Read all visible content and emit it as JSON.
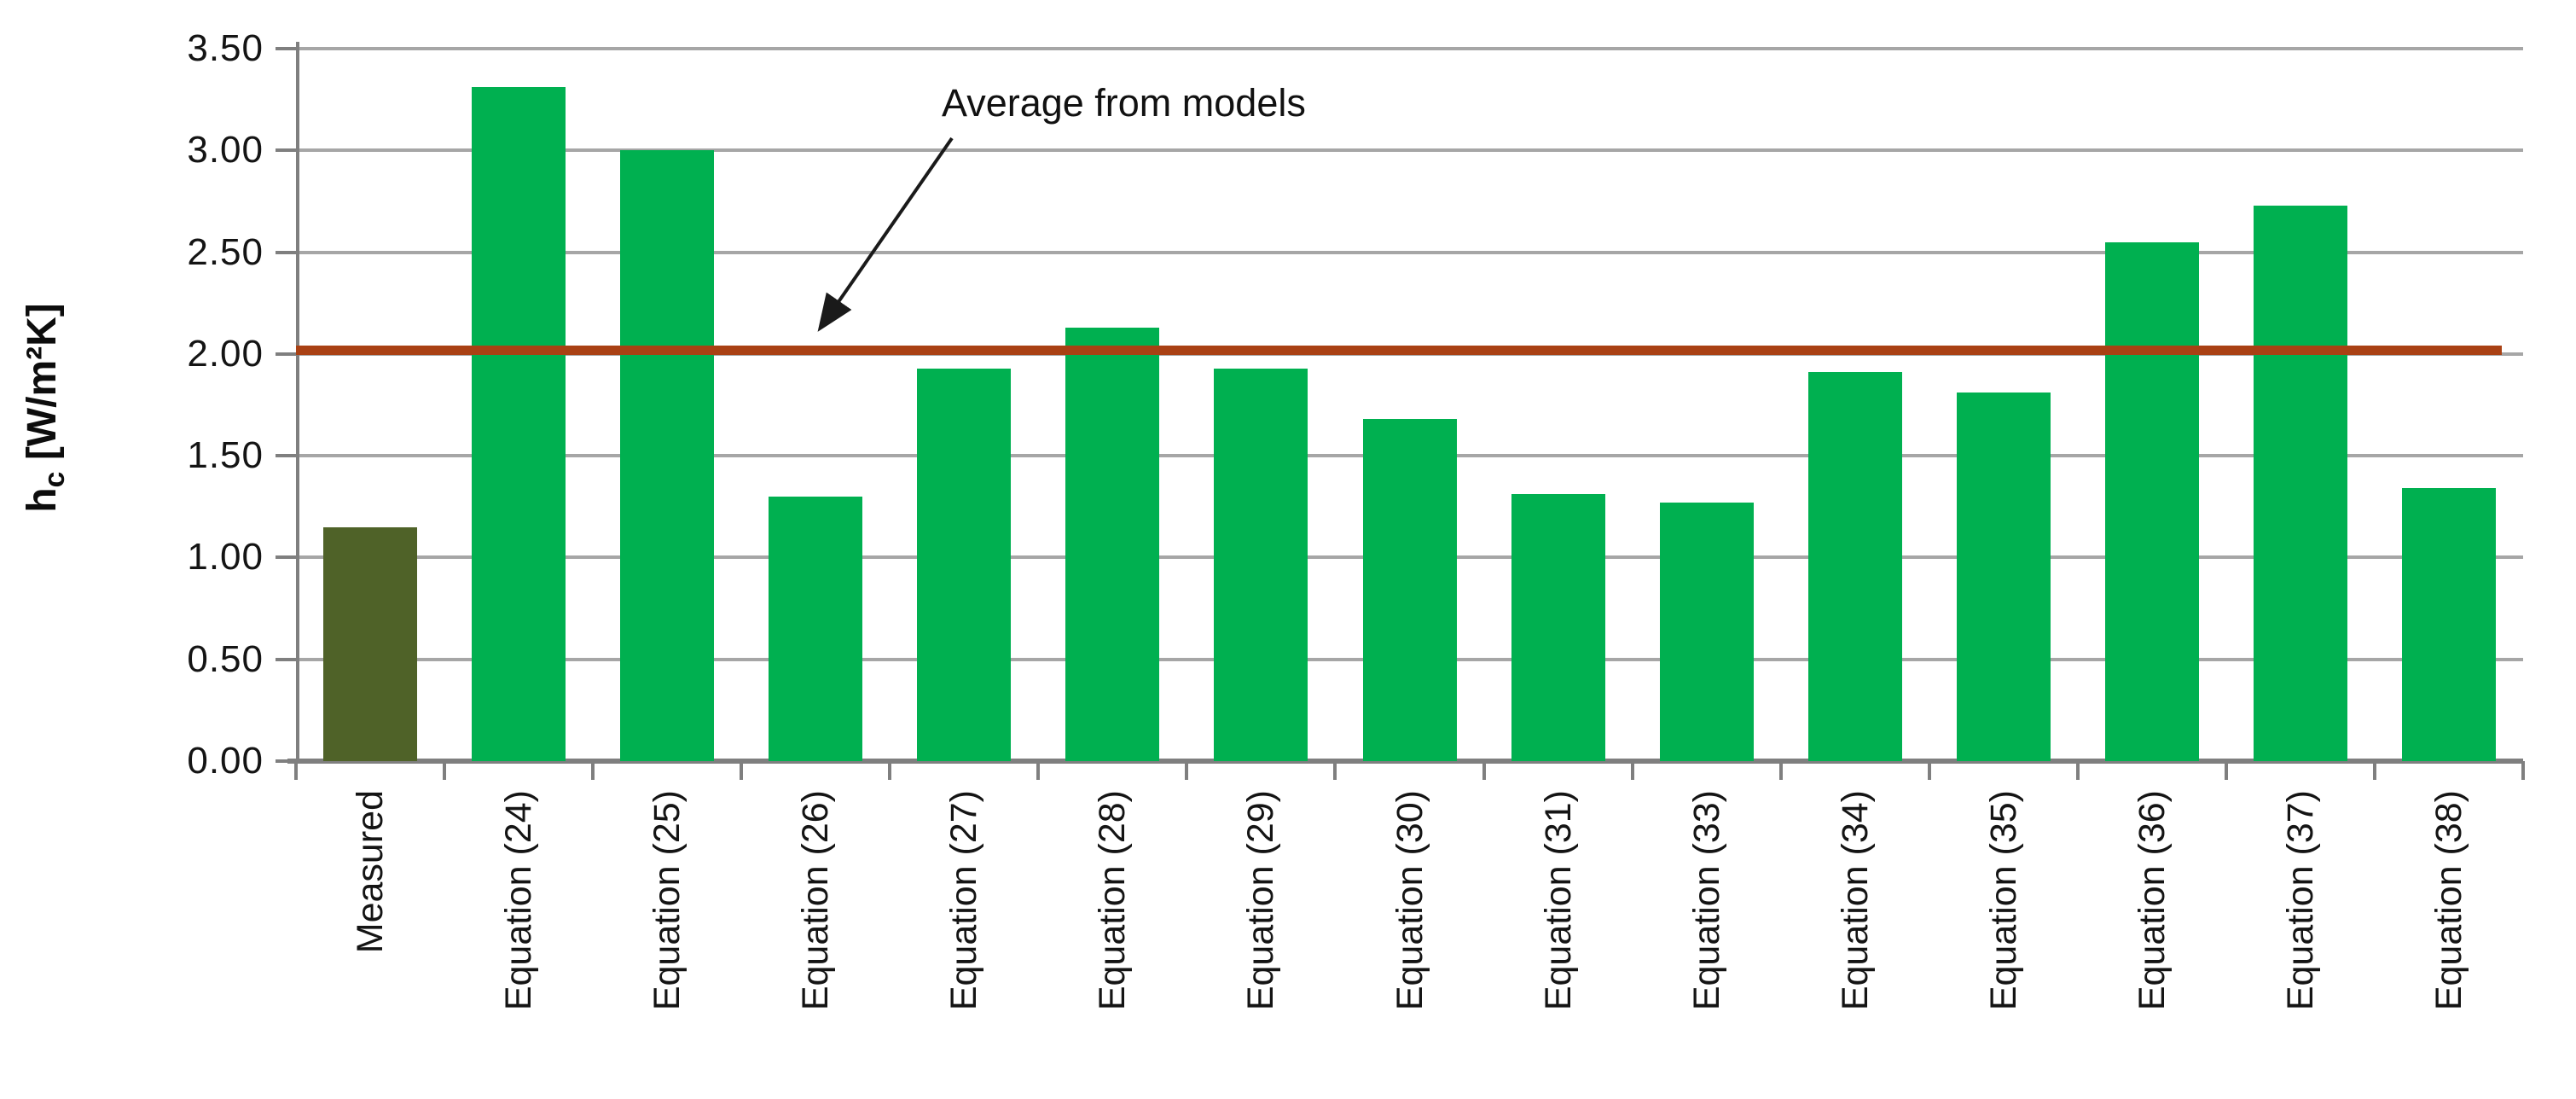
{
  "chart_data": {
    "type": "bar",
    "title": "",
    "xlabel": "",
    "ylabel": "hc [W/m²K]",
    "ylabel_parts": {
      "base": "h",
      "sub": "c",
      "unit": " [W/m²K]"
    },
    "categories": [
      "Measured",
      "Equation (24)",
      "Equation (25)",
      "Equation (26)",
      "Equation (27)",
      "Equation (28)",
      "Equation (29)",
      "Equation (30)",
      "Equation (31)",
      "Equation (33)",
      "Equation (34)",
      "Equation (35)",
      "Equation (36)",
      "Equation (37)",
      "Equation (38)"
    ],
    "values": [
      1.15,
      3.31,
      3.0,
      1.3,
      1.93,
      2.13,
      1.93,
      1.68,
      1.31,
      1.27,
      1.91,
      1.81,
      2.55,
      2.73,
      1.34
    ],
    "ylim": [
      0,
      3.5
    ],
    "ytick_step": 0.5,
    "ytick_labels": [
      "0.00",
      "0.50",
      "1.00",
      "1.50",
      "2.00",
      "2.50",
      "3.00",
      "3.50"
    ],
    "grid": true,
    "legend": "none",
    "annotation": {
      "text": "Average from models",
      "line_value": 2.02
    },
    "colors": {
      "measured_bar": "#4f6228",
      "model_bar": "#00b050",
      "average_line": "#a94114",
      "gridline": "#a6a6a6",
      "axis": "#7f7f7f",
      "text": "#141414",
      "annotation_arrow": "#1a1a1a"
    }
  }
}
